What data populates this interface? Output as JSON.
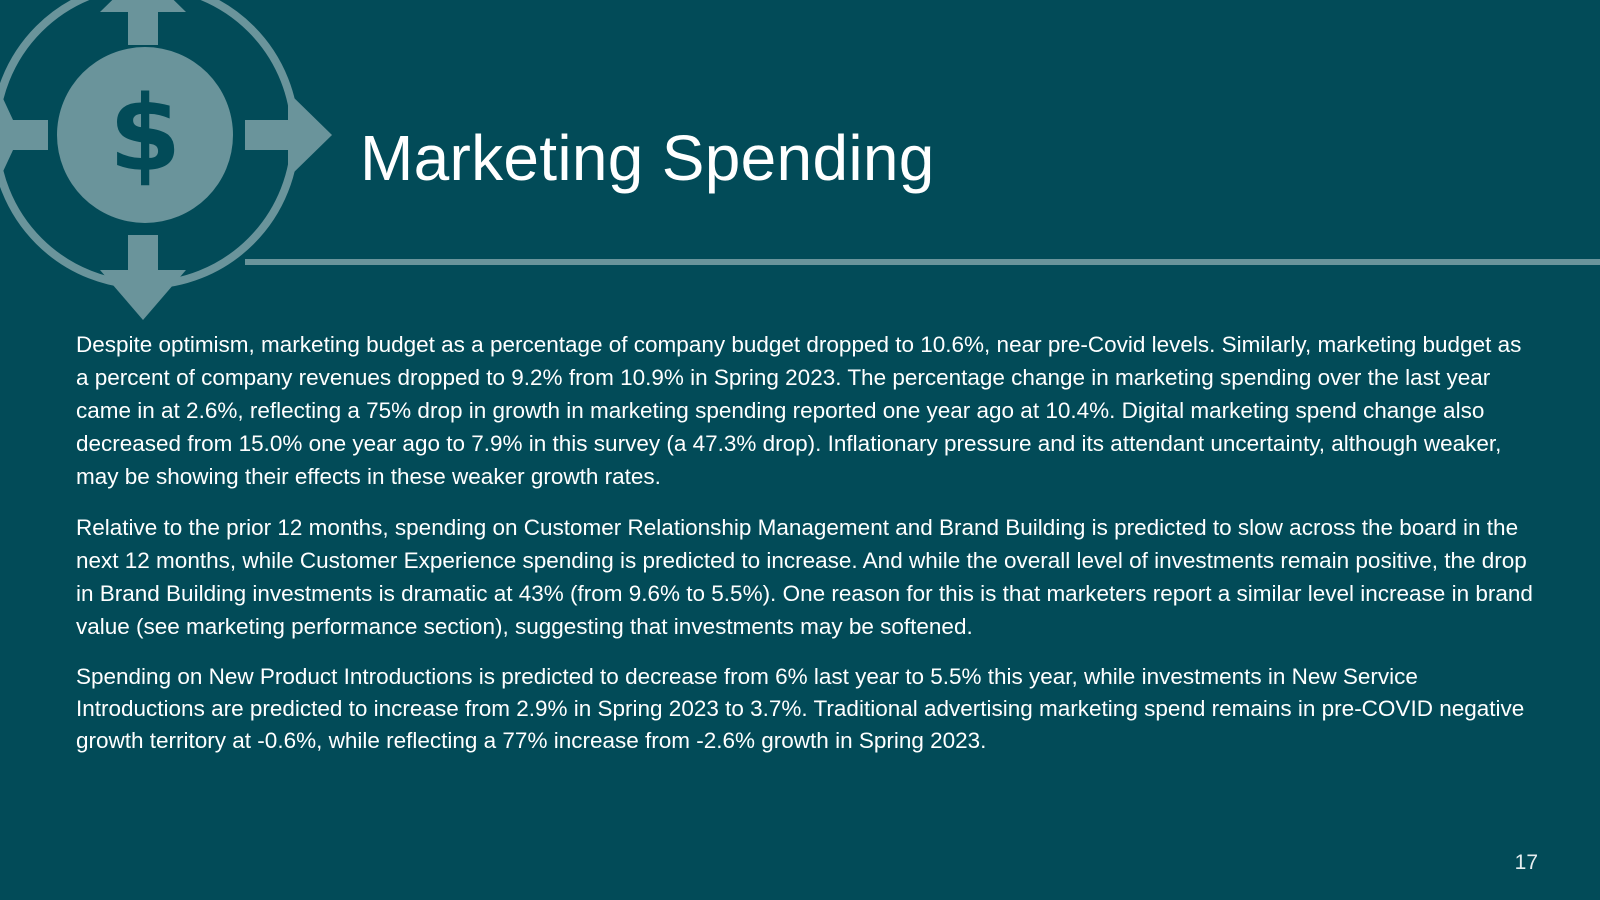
{
  "slide": {
    "title": "Marketing Spending",
    "page_number": "17",
    "icon": "dollar-arrows-circle-icon",
    "colors": {
      "background": "#024b58",
      "accent": "#6a949b",
      "text": "#ffffff"
    },
    "paragraphs": [
      "Despite optimism, marketing budget as a percentage of company budget dropped to 10.6%, near pre-Covid levels. Similarly, marketing budget as a percent of company revenues dropped to 9.2% from 10.9% in Spring 2023. The percentage change in marketing spending over the last year came in at 2.6%, reflecting a 75% drop in growth in marketing spending reported one year ago at 10.4%. Digital marketing spend change also decreased from 15.0% one year ago to 7.9% in this survey (a 47.3% drop). Inflationary pressure and its attendant uncertainty, although weaker, may be showing their effects in these weaker growth rates.",
      "Relative to the prior 12 months, spending on Customer Relationship Management and Brand Building is predicted to slow across the board in the next 12 months, while Customer Experience spending is predicted to increase. And while the overall level of investments remain positive, the drop in Brand Building investments is dramatic at 43% (from 9.6% to 5.5%). One reason for this is that marketers report a similar level increase in brand value (see marketing performance section), suggesting that investments may be softened.",
      "Spending on New Product Introductions is predicted to decrease from 6% last year to 5.5% this year, while investments in New Service Introductions are predicted to increase from 2.9% in Spring 2023 to 3.7%. Traditional advertising marketing spend remains in pre-COVID negative growth territory at -0.6%, while reflecting a 77% increase from -2.6% growth in Spring 2023."
    ]
  }
}
